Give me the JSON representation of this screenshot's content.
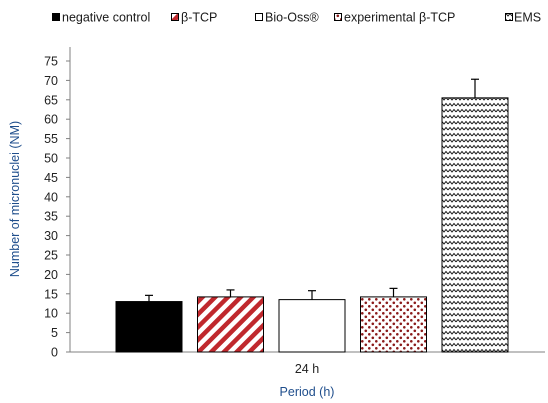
{
  "chart_data": {
    "type": "bar",
    "categories": [
      "24 h"
    ],
    "series": [
      {
        "name": "negative control",
        "value": 13.0,
        "error": 1.6,
        "fill": "solid",
        "color": "#000000"
      },
      {
        "name": "β-TCP",
        "value": 14.2,
        "error": 1.8,
        "fill": "diagonal-stripes",
        "color": "#b22222"
      },
      {
        "name": "Bio-Oss®",
        "value": 13.5,
        "error": 2.3,
        "fill": "white",
        "color": "#ffffff"
      },
      {
        "name": "experimental β-TCP",
        "value": 14.2,
        "error": 2.2,
        "fill": "dots",
        "color": "#8b1a1a"
      },
      {
        "name": "EMS",
        "value": 65.5,
        "error": 4.8,
        "fill": "zigzag",
        "color": "#000000"
      }
    ],
    "xlabel": "Period (h)",
    "ylabel": "Number of micronuclei (NM)",
    "ylim": [
      0,
      75
    ],
    "yticks": [
      0,
      5,
      10,
      15,
      20,
      25,
      30,
      35,
      40,
      45,
      50,
      55,
      60,
      65,
      70,
      75
    ],
    "grid": false,
    "legend": "top"
  }
}
